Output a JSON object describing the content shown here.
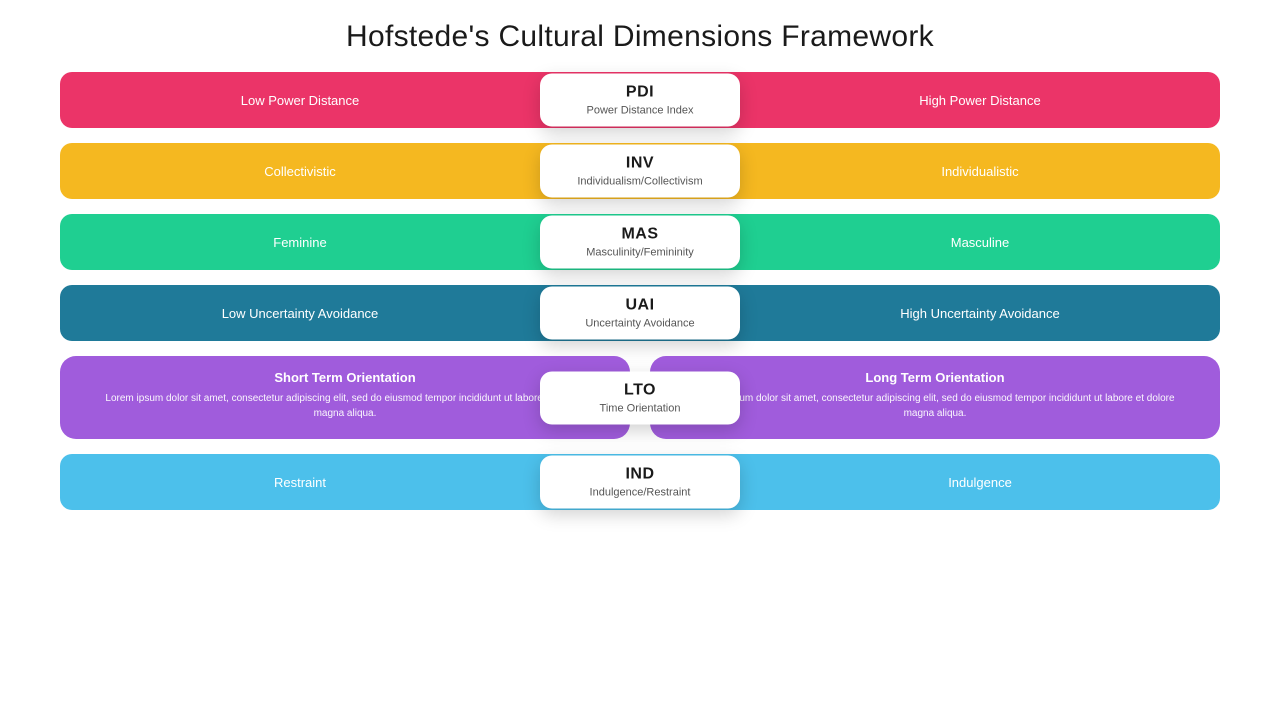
{
  "title": "Hofstede's Cultural Dimensions Framework",
  "background": "#ffffff",
  "text_color": "#1a1a1a",
  "card_bg": "#ffffff",
  "card_shadow": "rgba(0,0,0,0.18)",
  "rows": [
    {
      "abbr": "PDI",
      "full": "Power Distance Index",
      "left": "Low Power Distance",
      "right": "High Power Distance",
      "color": "#eb3468",
      "type": "bar"
    },
    {
      "abbr": "INV",
      "full": "Individualism/Collectivism",
      "left": "Collectivistic",
      "right": "Individualistic",
      "color": "#f5b820",
      "type": "bar"
    },
    {
      "abbr": "MAS",
      "full": "Masculinity/Femininity",
      "left": "Feminine",
      "right": "Masculine",
      "color": "#1fcf91",
      "type": "bar"
    },
    {
      "abbr": "UAI",
      "full": "Uncertainty Avoidance",
      "left": "Low Uncertainty Avoidance",
      "right": "High Uncertainty Avoidance",
      "color": "#1f7a99",
      "type": "bar"
    },
    {
      "abbr": "LTO",
      "full": "Time Orientation",
      "left": "Short Term Orientation",
      "right": "Long Term Orientation",
      "left_desc": "Lorem ipsum dolor sit amet, consectetur adipiscing elit, sed do eiusmod tempor incididunt ut labore et dolore magna aliqua.",
      "right_desc": "Lorem ipsum dolor sit amet, consectetur adipiscing elit, sed do eiusmod tempor incididunt ut labore et dolore magna aliqua.",
      "color": "#a05cdc",
      "type": "split"
    },
    {
      "abbr": "IND",
      "full": "Indulgence/Restraint",
      "left": "Restraint",
      "right": "Indulgence",
      "color": "#4cc0eb",
      "type": "bar"
    }
  ]
}
